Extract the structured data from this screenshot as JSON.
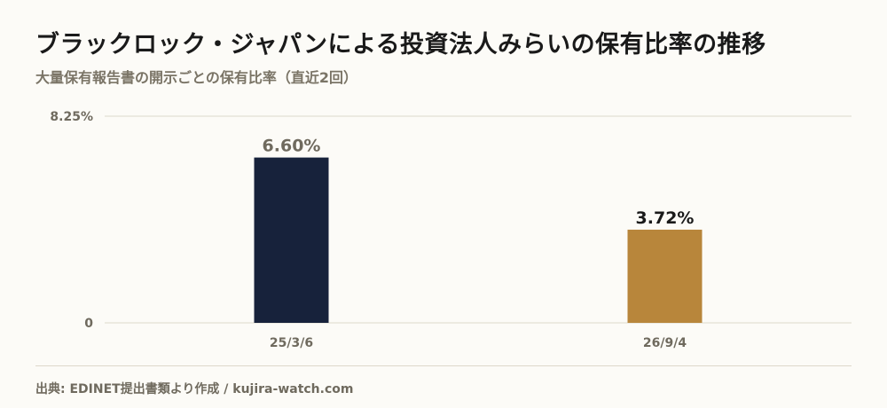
{
  "header": {
    "title": "ブラックロック・ジャパンによる投資法人みらいの保有比率の推移",
    "subtitle": "大量保有報告書の開示ごとの保有比率（直近2回）"
  },
  "chart_data": {
    "type": "bar",
    "categories": [
      "25/3/6",
      "26/9/4"
    ],
    "values": [
      6.6,
      3.72
    ],
    "data_labels": [
      "6.60%",
      "3.72%"
    ],
    "bar_colors": [
      "#17223b",
      "#b8863b"
    ],
    "label_colors": [
      "#6f6a5e",
      "#1a1a1a"
    ],
    "ylim": [
      0,
      8.25
    ],
    "y_tick_labels": [
      "0",
      "8.25%"
    ],
    "grid": true
  },
  "footer": {
    "source": "出典: EDINET提出書類より作成 / kujira-watch.com"
  }
}
